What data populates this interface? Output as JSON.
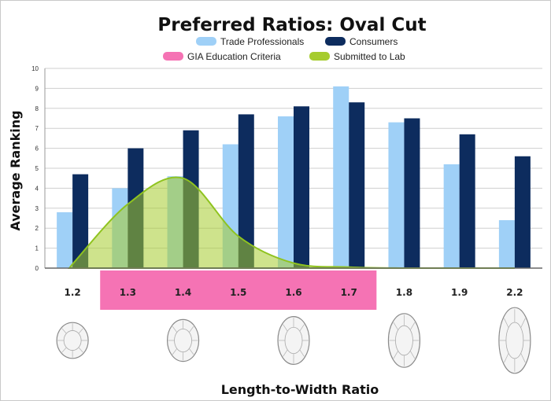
{
  "chart_data": {
    "type": "bar",
    "title": "Preferred Ratios: Oval Cut",
    "xlabel": "Length-to-Width Ratio",
    "ylabel": "Average Ranking",
    "ylim": [
      0,
      10
    ],
    "yticks": [
      0,
      1,
      2,
      3,
      4,
      5,
      6,
      7,
      8,
      9,
      10
    ],
    "grid": true,
    "legend_position": "top",
    "categories": [
      "1.2",
      "1.3",
      "1.4",
      "1.5",
      "1.6",
      "1.7",
      "1.8",
      "1.9",
      "2.2"
    ],
    "series": [
      {
        "name": "Trade Professionals",
        "color": "#9fd0f7",
        "values": [
          2.8,
          4.0,
          4.6,
          6.2,
          7.6,
          9.1,
          7.3,
          5.2,
          2.4
        ]
      },
      {
        "name": "Consumers",
        "color": "#0d2c5e",
        "values": [
          4.7,
          6.0,
          6.9,
          7.7,
          8.1,
          8.3,
          7.5,
          6.7,
          5.6
        ]
      }
    ],
    "overlays": [
      {
        "name": "GIA Education Criteria",
        "type": "range",
        "color": "#f573b4",
        "from": "1.3",
        "to": "1.7"
      },
      {
        "name": "Submitted to Lab",
        "type": "area",
        "color": "#a6cc2e",
        "values": [
          0.2,
          3.2,
          4.5,
          1.6,
          0.25,
          0.05,
          0,
          0,
          0
        ]
      }
    ],
    "shape_icon": "oval-diamond-icon"
  }
}
